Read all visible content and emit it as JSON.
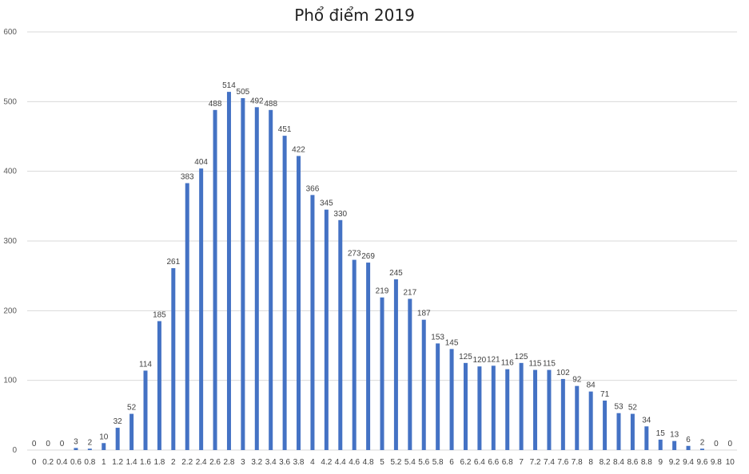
{
  "chart_data": {
    "type": "bar",
    "title": "Phổ điểm 2019",
    "xlabel": "",
    "ylabel": "",
    "ylim": [
      0,
      600
    ],
    "yticks": [
      0,
      100,
      200,
      300,
      400,
      500,
      600
    ],
    "grid": true,
    "legend": "none",
    "bar_color": "#4472C4",
    "categories": [
      "0",
      "0.2",
      "0.4",
      "0.6",
      "0.8",
      "1",
      "1.2",
      "1.4",
      "1.6",
      "1.8",
      "2",
      "2.2",
      "2.4",
      "2.6",
      "2.8",
      "3",
      "3.2",
      "3.4",
      "3.6",
      "3.8",
      "4",
      "4.2",
      "4.4",
      "4.6",
      "4.8",
      "5",
      "5.2",
      "5.4",
      "5.6",
      "5.8",
      "6",
      "6.2",
      "6.4",
      "6.6",
      "6.8",
      "7",
      "7.2",
      "7.4",
      "7.6",
      "7.8",
      "8",
      "8.2",
      "8.4",
      "8.6",
      "8.8",
      "9",
      "9.2",
      "9.4",
      "9.6",
      "9.8",
      "10"
    ],
    "values": [
      0,
      0,
      0,
      3,
      2,
      10,
      32,
      52,
      114,
      185,
      261,
      383,
      404,
      488,
      514,
      505,
      492,
      488,
      451,
      422,
      366,
      345,
      330,
      273,
      269,
      219,
      245,
      217,
      187,
      153,
      145,
      125,
      120,
      121,
      116,
      125,
      115,
      115,
      102,
      92,
      84,
      71,
      53,
      52,
      34,
      15,
      13,
      6,
      2,
      0,
      0
    ]
  }
}
